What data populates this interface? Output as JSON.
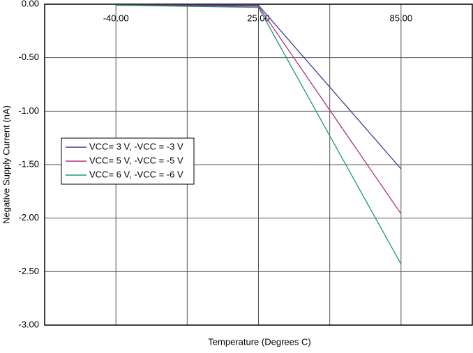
{
  "chart_data": {
    "type": "line",
    "x_label": "Temperature (Degrees C)",
    "y_label": "Negative Supply Current (nA)",
    "categories": [
      "-40.00",
      "25.00",
      "85.00"
    ],
    "series": [
      {
        "name": "VCC= 3 V, -VCC  = -3 V",
        "color": "#3c3c8e",
        "values": [
          -0.01,
          -0.01,
          -1.54
        ]
      },
      {
        "name": "VCC= 5 V, -VCC  = -5 V",
        "color": "#b3307c",
        "values": [
          -0.01,
          -0.02,
          -1.96
        ]
      },
      {
        "name": "VCC= 6 V, -VCC  = -6 V",
        "color": "#1b9a70",
        "values": [
          -0.01,
          -0.03,
          -2.43
        ]
      }
    ],
    "ylim": [
      -3,
      0
    ],
    "yticks": [
      {
        "value": 0,
        "label": "0.00"
      },
      {
        "value": -0.5,
        "label": "-0.50"
      },
      {
        "value": -1,
        "label": "-1.00"
      },
      {
        "value": -1.5,
        "label": "-1.50"
      },
      {
        "value": -2,
        "label": "-2.00"
      },
      {
        "value": -2.5,
        "label": "-2.50"
      },
      {
        "value": -3,
        "label": "-3.00"
      }
    ],
    "grid": true,
    "legend": "left"
  }
}
